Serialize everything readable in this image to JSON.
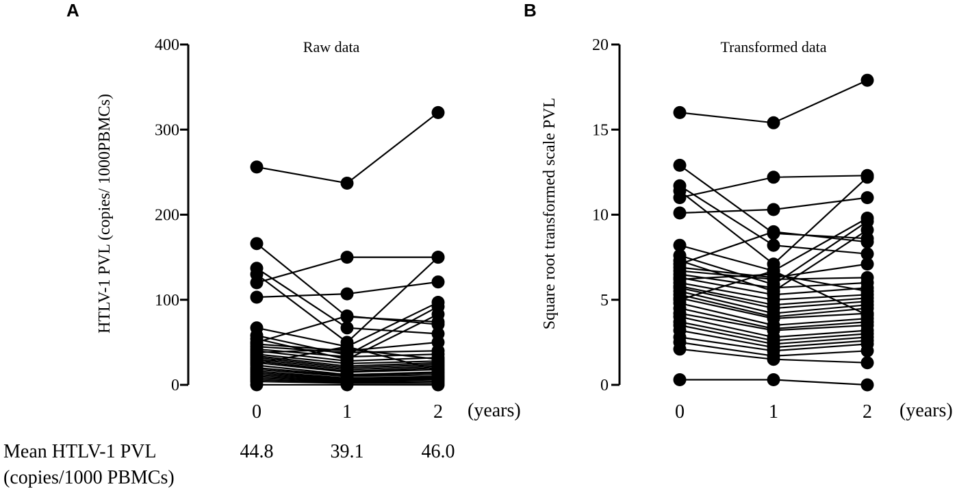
{
  "chart_data": [
    {
      "panel": "A",
      "type": "line",
      "title": "Raw data",
      "ylabel": "HTLV-1 PVL (copies/ 1000PBMCs)",
      "xlabel": "(years)",
      "categories": [
        "0",
        "1",
        "2"
      ],
      "yticks": [
        "0",
        "100",
        "200",
        "300",
        "400"
      ],
      "ylim": [
        0,
        400
      ],
      "series": [
        {
          "values": [
            256,
            237,
            320
          ]
        },
        {
          "values": [
            166,
            80,
            74
          ]
        },
        {
          "values": [
            137,
            67,
            60
          ]
        },
        {
          "values": [
            130,
            50,
            150
          ]
        },
        {
          "values": [
            120,
            150,
            150
          ]
        },
        {
          "values": [
            103,
            107,
            121
          ]
        },
        {
          "values": [
            67,
            45,
            97
          ]
        },
        {
          "values": [
            58,
            35,
            92
          ]
        },
        {
          "values": [
            54,
            30,
            83
          ]
        },
        {
          "values": [
            50,
            81,
            71
          ]
        },
        {
          "values": [
            48,
            40,
            50
          ]
        },
        {
          "values": [
            45,
            38,
            40
          ]
        },
        {
          "values": [
            42,
            33,
            36
          ]
        },
        {
          "values": [
            40,
            28,
            32
          ]
        },
        {
          "values": [
            38,
            42,
            30
          ]
        },
        {
          "values": [
            36,
            25,
            28
          ]
        },
        {
          "values": [
            34,
            22,
            26
          ]
        },
        {
          "values": [
            32,
            20,
            24
          ]
        },
        {
          "values": [
            30,
            18,
            22
          ]
        },
        {
          "values": [
            28,
            16,
            20
          ]
        },
        {
          "values": [
            26,
            15,
            18
          ]
        },
        {
          "values": [
            25,
            45,
            17
          ]
        },
        {
          "values": [
            23,
            12,
            15
          ]
        },
        {
          "values": [
            20,
            11,
            14
          ]
        },
        {
          "values": [
            18,
            10,
            12
          ]
        },
        {
          "values": [
            16,
            8,
            10
          ]
        },
        {
          "values": [
            14,
            7,
            9
          ]
        },
        {
          "values": [
            12,
            6,
            8
          ]
        },
        {
          "values": [
            10,
            5,
            7
          ]
        },
        {
          "values": [
            8,
            4,
            6
          ]
        },
        {
          "values": [
            6,
            3,
            4
          ]
        },
        {
          "values": [
            4,
            2,
            2
          ]
        },
        {
          "values": [
            0.1,
            0.1,
            0
          ]
        }
      ]
    },
    {
      "panel": "B",
      "type": "line",
      "title": "Transformed  data",
      "ylabel": "Square root transformed scale PVL",
      "xlabel": "(years)",
      "categories": [
        "0",
        "1",
        "2"
      ],
      "yticks": [
        "0",
        "5",
        "10",
        "15",
        "20"
      ],
      "ylim": [
        0,
        20
      ],
      "series": [
        {
          "values": [
            16.0,
            15.4,
            17.9
          ]
        },
        {
          "values": [
            12.9,
            8.9,
            8.6
          ]
        },
        {
          "values": [
            11.7,
            8.2,
            7.7
          ]
        },
        {
          "values": [
            11.4,
            7.1,
            12.2
          ]
        },
        {
          "values": [
            11.0,
            12.2,
            12.3
          ]
        },
        {
          "values": [
            10.1,
            10.3,
            11.0
          ]
        },
        {
          "values": [
            8.2,
            6.7,
            9.8
          ]
        },
        {
          "values": [
            7.6,
            5.9,
            9.6
          ]
        },
        {
          "values": [
            7.3,
            5.5,
            9.1
          ]
        },
        {
          "values": [
            7.1,
            9.0,
            8.4
          ]
        },
        {
          "values": [
            6.9,
            6.3,
            7.1
          ]
        },
        {
          "values": [
            6.7,
            6.2,
            6.3
          ]
        },
        {
          "values": [
            6.5,
            5.7,
            6.0
          ]
        },
        {
          "values": [
            6.3,
            5.3,
            5.7
          ]
        },
        {
          "values": [
            6.2,
            6.5,
            5.5
          ]
        },
        {
          "values": [
            6.0,
            5.0,
            5.3
          ]
        },
        {
          "values": [
            5.8,
            4.7,
            5.1
          ]
        },
        {
          "values": [
            5.7,
            4.5,
            4.9
          ]
        },
        {
          "values": [
            5.5,
            4.2,
            4.7
          ]
        },
        {
          "values": [
            5.3,
            4.0,
            4.5
          ]
        },
        {
          "values": [
            5.1,
            3.9,
            4.2
          ]
        },
        {
          "values": [
            5.0,
            6.7,
            4.1
          ]
        },
        {
          "values": [
            4.8,
            3.5,
            3.9
          ]
        },
        {
          "values": [
            4.5,
            3.3,
            3.7
          ]
        },
        {
          "values": [
            4.2,
            3.2,
            3.5
          ]
        },
        {
          "values": [
            4.0,
            2.8,
            3.2
          ]
        },
        {
          "values": [
            3.7,
            2.6,
            3.0
          ]
        },
        {
          "values": [
            3.5,
            2.4,
            2.8
          ]
        },
        {
          "values": [
            3.2,
            2.2,
            2.6
          ]
        },
        {
          "values": [
            2.8,
            2.0,
            2.4
          ]
        },
        {
          "values": [
            2.5,
            1.7,
            2.0
          ]
        },
        {
          "values": [
            2.1,
            1.5,
            1.3
          ]
        },
        {
          "values": [
            0.3,
            0.3,
            0
          ]
        }
      ]
    }
  ],
  "panel_labels": {
    "a": "A",
    "b": "B"
  },
  "mean_row": {
    "label_line1": "Mean HTLV-1 PVL",
    "label_line2": "(copies/1000 PBMCs)",
    "values": [
      "44.8",
      "39.1",
      "46.0"
    ]
  }
}
